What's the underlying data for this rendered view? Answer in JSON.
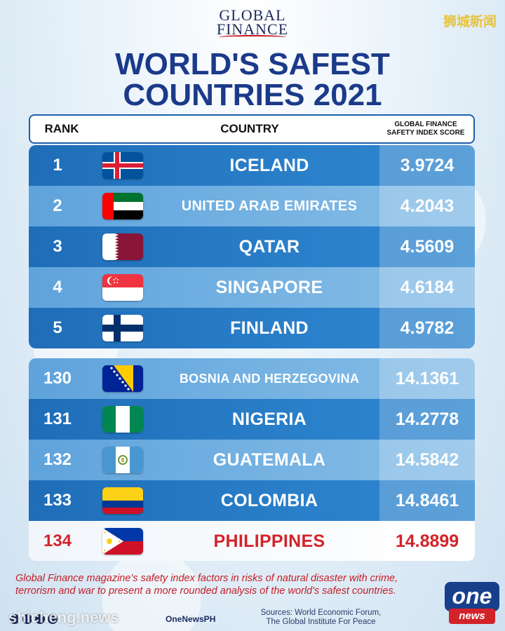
{
  "corner_tag": "狮城新闻",
  "masthead": {
    "line1": "GLOBAL",
    "line2": "FINANCE"
  },
  "title": {
    "line1": "WORLD'S SAFEST",
    "line2": "COUNTRIES 2021"
  },
  "table": {
    "headers": {
      "rank": "RANK",
      "country": "COUNTRY",
      "score_line1": "GLOBAL FINANCE",
      "score_line2": "SAFETY INDEX SCORE"
    },
    "top": [
      {
        "rank": "1",
        "country": "ICELAND",
        "score": "3.9724",
        "flag": "iceland-flag-icon"
      },
      {
        "rank": "2",
        "country": "UNITED ARAB EMIRATES",
        "score": "4.2043",
        "flag": "uae-flag-icon"
      },
      {
        "rank": "3",
        "country": "QATAR",
        "score": "4.5609",
        "flag": "qatar-flag-icon"
      },
      {
        "rank": "4",
        "country": "SINGAPORE",
        "score": "4.6184",
        "flag": "singapore-flag-icon"
      },
      {
        "rank": "5",
        "country": "FINLAND",
        "score": "4.9782",
        "flag": "finland-flag-icon"
      }
    ],
    "bottom": [
      {
        "rank": "130",
        "country": "BOSNIA AND HERZEGOVINA",
        "score": "14.1361",
        "flag": "bosnia-flag-icon"
      },
      {
        "rank": "131",
        "country": "NIGERIA",
        "score": "14.2778",
        "flag": "nigeria-flag-icon"
      },
      {
        "rank": "132",
        "country": "GUATEMALA",
        "score": "14.5842",
        "flag": "guatemala-flag-icon"
      },
      {
        "rank": "133",
        "country": "COLOMBIA",
        "score": "14.8461",
        "flag": "colombia-flag-icon"
      },
      {
        "rank": "134",
        "country": "PHILIPPINES",
        "score": "14.8899",
        "flag": "philippines-flag-icon"
      }
    ]
  },
  "colors": {
    "title": "#1b3a8a",
    "row_dark": "#1f6db8",
    "row_light": "#5fa3dc",
    "highlight_text": "#d3232a"
  },
  "footnote": "Global Finance magazine's safety index factors in risks of natural disaster with crime, terrorism and war to present a more rounded analysis of the world's safest countries.",
  "social_handle": "OneNewsPH",
  "watermark": "shicheng.news",
  "sources": {
    "line1": "Sources: World Economic Forum,",
    "line2": "The Global Institute For Peace"
  },
  "logo": {
    "top": "one",
    "bottom": "news"
  }
}
